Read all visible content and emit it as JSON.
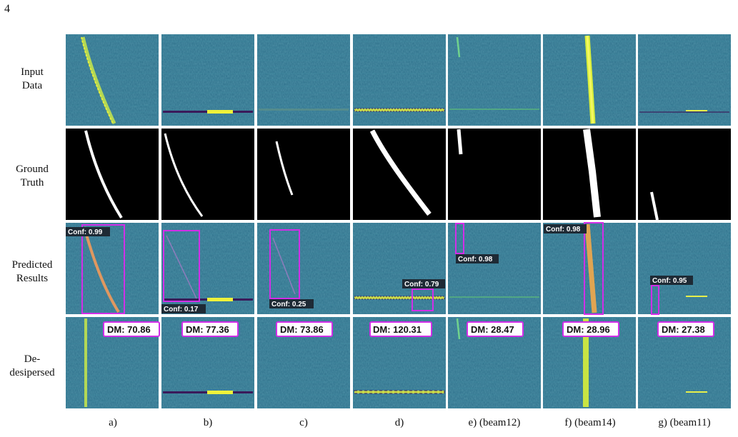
{
  "page_number": "4",
  "row_labels": [
    {
      "line1": "Input",
      "line2": "Data"
    },
    {
      "line1": "Ground",
      "line2": "Truth"
    },
    {
      "line1": "Predicted",
      "line2": "Results"
    },
    {
      "line1": "De-",
      "line2": "desipersed"
    }
  ],
  "column_labels": [
    "a)",
    "b)",
    "c)",
    "d)",
    "e) (beam12)",
    "f) (beam14)",
    "g) (beam11)"
  ],
  "confidences": [
    "Conf: 0.99",
    "Conf: 0.17",
    "Conf: 0.25",
    "Conf: 0.79",
    "Conf: 0.98",
    "Conf: 0.98",
    "Conf: 0.95"
  ],
  "dm_values": [
    "DM: 70.86",
    "DM: 77.36",
    "DM: 73.86",
    "DM: 120.31",
    "DM: 28.47",
    "DM: 28.96",
    "DM: 27.38"
  ],
  "colors": {
    "background_panel": "#2c6f8a",
    "box": "#d12ee8",
    "signal": "#f0f23a",
    "label_bg": "#1e2a35"
  }
}
